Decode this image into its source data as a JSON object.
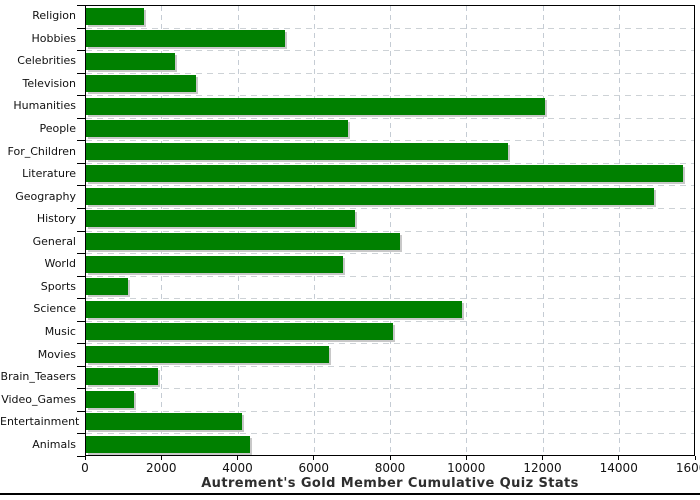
{
  "chart_data": {
    "type": "bar",
    "orientation": "horizontal",
    "title": "Autrement's Gold Member Cumulative Quiz Stats",
    "categories": [
      "Religion",
      "Hobbies",
      "Celebrities",
      "Television",
      "Humanities",
      "People",
      "For_Children",
      "Literature",
      "Geography",
      "History",
      "General",
      "World",
      "Sports",
      "Science",
      "Music",
      "Movies",
      "Brain_Teasers",
      "Video_Games",
      "Entertainment",
      "Animals"
    ],
    "values": [
      1530,
      5230,
      2340,
      2890,
      12040,
      6870,
      11070,
      15660,
      14900,
      7060,
      8240,
      6740,
      1100,
      9860,
      8060,
      6370,
      1880,
      1270,
      4090,
      4310
    ],
    "xlim": [
      0,
      16000
    ],
    "x_ticks": [
      0,
      2000,
      4000,
      6000,
      8000,
      10000,
      12000,
      14000,
      16000
    ],
    "x_tick_labels": [
      "0",
      "2000",
      "4000",
      "6000",
      "8000",
      "10000",
      "12000",
      "14000",
      "16000"
    ],
    "grid": "dashed",
    "legend_position": "none",
    "colors": {
      "bar": "#008000",
      "bar_shadow": "#c8c8c8",
      "grid": "#c9ced4",
      "axis": "#000000",
      "title_text": "#2e2e2e"
    }
  }
}
